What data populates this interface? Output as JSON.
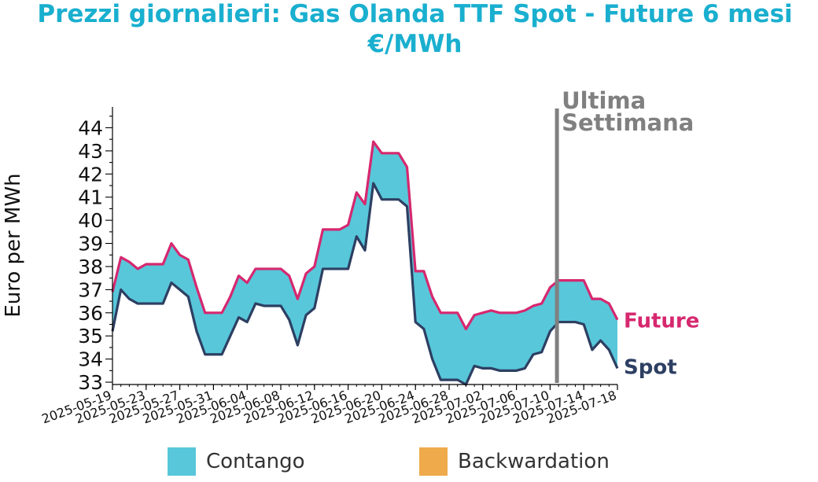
{
  "title_line1": "Prezzi giornalieri: Gas Olanda TTF Spot - Future 6 mesi",
  "title_line2": "€/MWh",
  "legend": [
    {
      "label": "Contango",
      "color": "#58c7da"
    },
    {
      "label": "Backwardation",
      "color": "#eeaa4b"
    }
  ],
  "marker_label_line1": "Ultima",
  "marker_label_line2": "Settimana",
  "colors": {
    "future": "#d6286f",
    "spot": "#2d3f62",
    "contango": "#58c7da",
    "marker": "#808080",
    "title": "#1aafcf"
  },
  "chart_data": {
    "type": "area",
    "ylabel": "Euro per MWh",
    "xlabel": "",
    "ylim": [
      32.9,
      44.9
    ],
    "yticks": [
      33,
      34,
      35,
      36,
      37,
      38,
      39,
      40,
      41,
      42,
      43,
      44
    ],
    "xlim": [
      "2025-05-19",
      "2025-07-18"
    ],
    "xticks": [
      "2025-05-19",
      "2025-05-23",
      "2025-05-27",
      "2025-05-31",
      "2025-06-04",
      "2025-06-08",
      "2025-06-12",
      "2025-06-16",
      "2025-06-20",
      "2025-06-24",
      "2025-06-28",
      "2025-07-02",
      "2025-07-06",
      "2025-07-10",
      "2025-07-14",
      "2025-07-18"
    ],
    "vertical_marker_date": "2025-07-11",
    "x": [
      "2025-05-19",
      "2025-05-20",
      "2025-05-21",
      "2025-05-22",
      "2025-05-23",
      "2025-05-24",
      "2025-05-25",
      "2025-05-26",
      "2025-05-27",
      "2025-05-28",
      "2025-05-29",
      "2025-05-30",
      "2025-05-31",
      "2025-06-01",
      "2025-06-02",
      "2025-06-03",
      "2025-06-04",
      "2025-06-05",
      "2025-06-06",
      "2025-06-07",
      "2025-06-08",
      "2025-06-09",
      "2025-06-10",
      "2025-06-11",
      "2025-06-12",
      "2025-06-13",
      "2025-06-14",
      "2025-06-15",
      "2025-06-16",
      "2025-06-17",
      "2025-06-18",
      "2025-06-19",
      "2025-06-20",
      "2025-06-21",
      "2025-06-22",
      "2025-06-23",
      "2025-06-24",
      "2025-06-25",
      "2025-06-26",
      "2025-06-27",
      "2025-06-28",
      "2025-06-29",
      "2025-06-30",
      "2025-07-01",
      "2025-07-02",
      "2025-07-03",
      "2025-07-04",
      "2025-07-05",
      "2025-07-06",
      "2025-07-07",
      "2025-07-08",
      "2025-07-09",
      "2025-07-10",
      "2025-07-11",
      "2025-07-12",
      "2025-07-13",
      "2025-07-14",
      "2025-07-15",
      "2025-07-16",
      "2025-07-17",
      "2025-07-18"
    ],
    "series": [
      {
        "name": "Future",
        "values": [
          36.9,
          38.4,
          38.2,
          37.9,
          38.1,
          38.1,
          38.1,
          39.0,
          38.5,
          38.3,
          37.1,
          36.0,
          36.0,
          36.0,
          36.7,
          37.6,
          37.3,
          37.9,
          37.9,
          37.9,
          37.9,
          37.6,
          36.6,
          37.7,
          38.0,
          39.6,
          39.6,
          39.6,
          39.8,
          41.2,
          40.7,
          43.4,
          42.9,
          42.9,
          42.9,
          42.3,
          37.8,
          37.8,
          36.7,
          36.0,
          36.0,
          36.0,
          35.3,
          35.9,
          36.0,
          36.1,
          36.0,
          36.0,
          36.0,
          36.1,
          36.3,
          36.4,
          37.1,
          37.4,
          37.4,
          37.4,
          37.4,
          36.6,
          36.6,
          36.4,
          35.7
        ]
      },
      {
        "name": "Spot",
        "values": [
          35.2,
          37.0,
          36.6,
          36.4,
          36.4,
          36.4,
          36.4,
          37.3,
          37.0,
          36.7,
          35.2,
          34.2,
          34.2,
          34.2,
          35.0,
          35.8,
          35.6,
          36.4,
          36.3,
          36.3,
          36.3,
          35.7,
          34.6,
          35.9,
          36.2,
          37.9,
          37.9,
          37.9,
          37.9,
          39.3,
          38.7,
          41.6,
          40.9,
          40.9,
          40.9,
          40.6,
          35.6,
          35.3,
          34.0,
          33.1,
          33.1,
          33.1,
          32.9,
          33.7,
          33.6,
          33.6,
          33.5,
          33.5,
          33.5,
          33.6,
          34.2,
          34.3,
          35.2,
          35.6,
          35.6,
          35.6,
          35.5,
          34.4,
          34.8,
          34.4,
          33.6
        ]
      }
    ]
  }
}
